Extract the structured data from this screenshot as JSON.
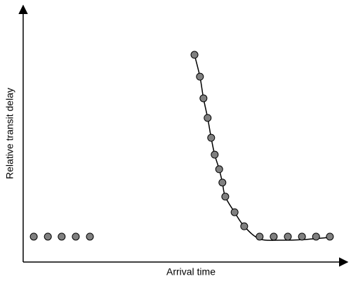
{
  "chart_data": {
    "type": "scatter",
    "x_label": "Arrival time",
    "y_label": "Relative transit delay",
    "xlim": [
      0,
      100
    ],
    "ylim": [
      0,
      100
    ],
    "point_color": "#808080",
    "line_color": "#000000",
    "series": [
      {
        "x": [
          3.3,
          7.7,
          12.0,
          16.4,
          20.8,
          53.4,
          55.1,
          56.2,
          57.5,
          58.6,
          59.7,
          61.1,
          62.1,
          63.0,
          65.9,
          68.9,
          73.7,
          78.1,
          82.5,
          86.9,
          91.3,
          95.6
        ],
        "values": [
          10.1,
          10.1,
          10.1,
          10.1,
          10.1,
          82.4,
          73.7,
          65.1,
          57.3,
          49.4,
          42.7,
          36.9,
          31.6,
          26.0,
          19.8,
          14.2,
          10.1,
          10.1,
          10.1,
          10.1,
          10.1,
          10.1
        ]
      }
    ],
    "fit": {
      "x": [
        53.4,
        55.1,
        56.2,
        57.5,
        58.6,
        59.7,
        61.1,
        62.1,
        63.0,
        65.9,
        68.9,
        73.7,
        80.3,
        86.9,
        95.6
      ],
      "values": [
        82.4,
        73.7,
        65.1,
        57.3,
        49.4,
        42.7,
        36.9,
        31.6,
        26.0,
        19.8,
        14.2,
        9.2,
        8.7,
        8.9,
        9.8
      ]
    }
  }
}
